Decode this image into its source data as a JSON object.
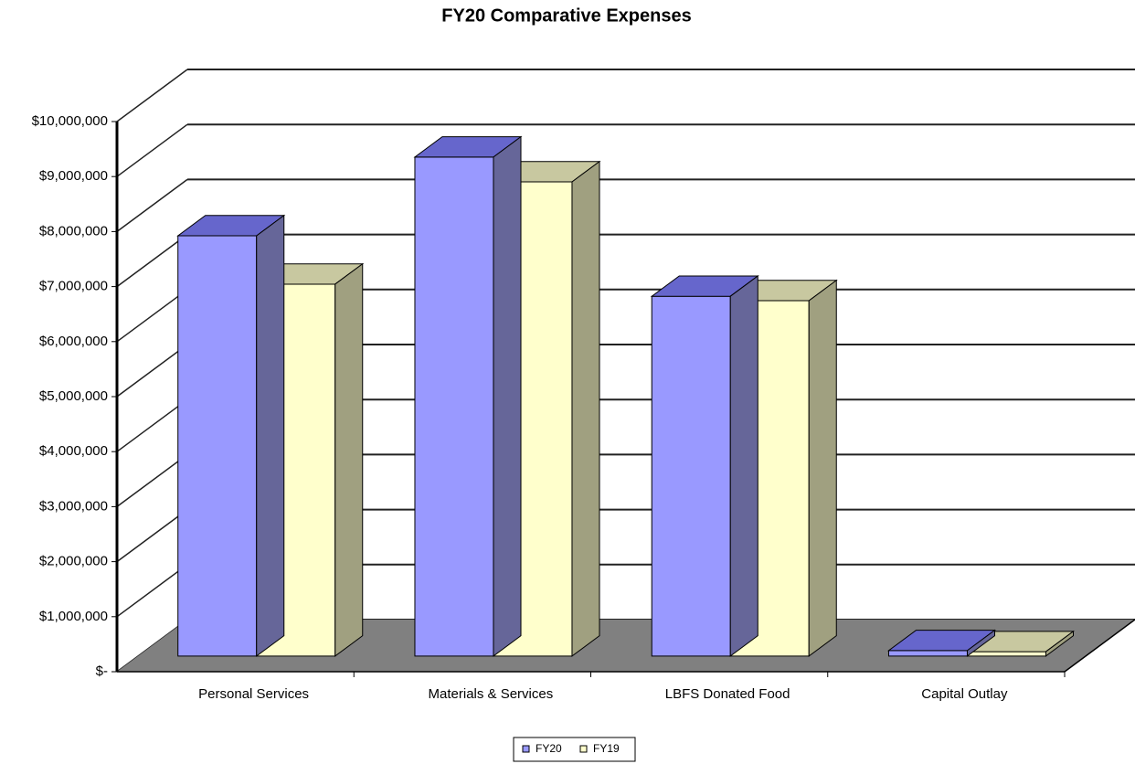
{
  "chart_data": {
    "type": "bar3d",
    "title": "FY20 Comparative Expenses",
    "categories": [
      "Personal Services",
      "Materials & Services",
      "LBFS Donated Food",
      "Capital Outlay"
    ],
    "series": [
      {
        "name": "FY20",
        "color": "#9999ff",
        "values": [
          7640000,
          9070000,
          6540000,
          100000
        ]
      },
      {
        "name": "FY19",
        "color": "#ffffcc",
        "values": [
          6760000,
          8620000,
          6460000,
          80000
        ]
      }
    ],
    "ylim": [
      0,
      10000000
    ],
    "yticks": [
      {
        "value": 0,
        "label": "$-"
      },
      {
        "value": 1000000,
        "label": "$1,000,000"
      },
      {
        "value": 2000000,
        "label": "$2,000,000"
      },
      {
        "value": 3000000,
        "label": "$3,000,000"
      },
      {
        "value": 4000000,
        "label": "$4,000,000"
      },
      {
        "value": 5000000,
        "label": "$5,000,000"
      },
      {
        "value": 6000000,
        "label": "$6,000,000"
      },
      {
        "value": 7000000,
        "label": "$7,000,000"
      },
      {
        "value": 8000000,
        "label": "$8,000,000"
      },
      {
        "value": 9000000,
        "label": "$9,000,000"
      },
      {
        "value": 10000000,
        "label": "$10,000,000"
      }
    ],
    "grid": true,
    "legend": "bottom"
  }
}
